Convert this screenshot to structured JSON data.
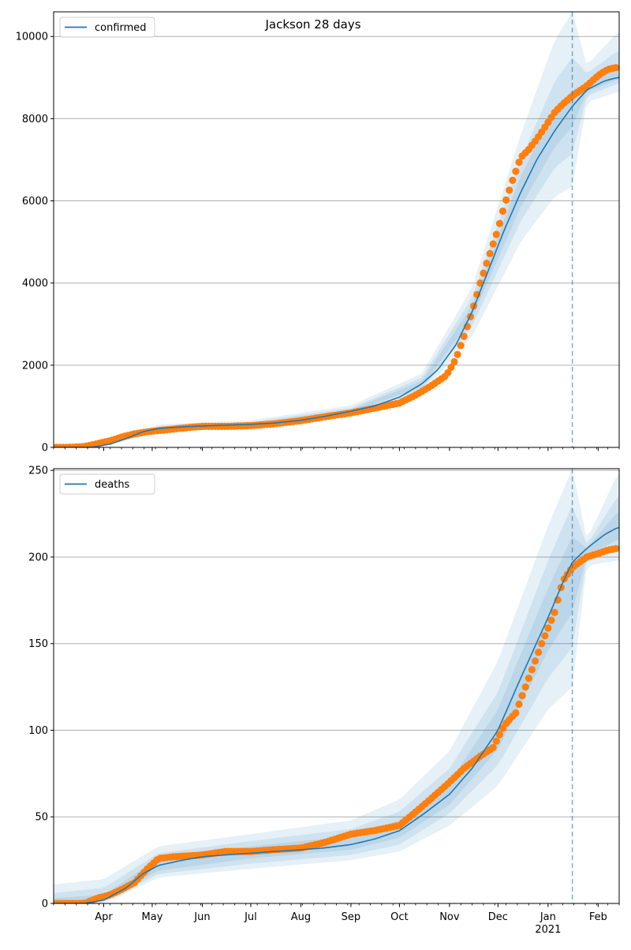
{
  "figure_title": "Jackson 28 days",
  "chart_data": [
    {
      "type": "line",
      "legend_label": "confirmed",
      "legend_position": "upper-left",
      "ylim": [
        0,
        10600
      ],
      "yticks": [
        0,
        2000,
        4000,
        6000,
        8000,
        10000
      ],
      "grid": "horizontal",
      "forecast_start": "2021-01-16",
      "model_median": {
        "dates": [
          "2020-03-01",
          "2020-03-15",
          "2020-03-25",
          "2020-04-05",
          "2020-04-15",
          "2020-04-25",
          "2020-05-05",
          "2020-05-20",
          "2020-06-01",
          "2020-06-15",
          "2020-07-01",
          "2020-07-15",
          "2020-08-01",
          "2020-08-15",
          "2020-09-01",
          "2020-09-15",
          "2020-10-01",
          "2020-10-15",
          "2020-10-25",
          "2020-11-05",
          "2020-11-15",
          "2020-11-25",
          "2020-12-05",
          "2020-12-15",
          "2020-12-25",
          "2021-01-05",
          "2021-01-16",
          "2021-01-25",
          "2021-02-05",
          "2021-02-13"
        ],
        "values": [
          0,
          0,
          5,
          80,
          220,
          380,
          460,
          500,
          520,
          540,
          560,
          590,
          660,
          750,
          880,
          1000,
          1220,
          1550,
          1900,
          2500,
          3300,
          4300,
          5300,
          6200,
          7000,
          7700,
          8300,
          8700,
          8920,
          9000
        ]
      },
      "bands": [
        {
          "level": "outer",
          "dates": [
            "2020-03-01",
            "2020-04-05",
            "2020-05-05",
            "2020-07-01",
            "2020-09-01",
            "2020-10-15",
            "2020-11-15",
            "2020-12-15",
            "2021-01-05",
            "2021-01-16",
            "2021-01-25",
            "2021-02-13"
          ],
          "low": [
            0,
            60,
            380,
            470,
            760,
            1300,
            2700,
            5000,
            6100,
            6350,
            8400,
            8650
          ],
          "high": [
            0,
            120,
            560,
            660,
            1020,
            1800,
            3900,
            7600,
            9900,
            10600,
            9300,
            10100
          ]
        },
        {
          "level": "middle",
          "dates": [
            "2020-03-01",
            "2020-04-05",
            "2020-05-05",
            "2020-07-01",
            "2020-09-01",
            "2020-10-15",
            "2020-11-15",
            "2020-12-15",
            "2021-01-05",
            "2021-01-16",
            "2021-01-25",
            "2021-02-13"
          ],
          "low": [
            0,
            70,
            410,
            510,
            810,
            1400,
            2950,
            5500,
            6800,
            7150,
            8550,
            8850
          ],
          "high": [
            0,
            100,
            520,
            620,
            960,
            1700,
            3650,
            7000,
            8900,
            9500,
            9100,
            9650
          ]
        },
        {
          "level": "inner",
          "dates": [
            "2020-03-01",
            "2020-04-05",
            "2020-05-05",
            "2020-07-01",
            "2020-09-01",
            "2020-10-15",
            "2020-11-15",
            "2020-12-15",
            "2021-01-05",
            "2021-01-16",
            "2021-01-25",
            "2021-02-13"
          ],
          "low": [
            0,
            75,
            440,
            540,
            850,
            1480,
            3150,
            5850,
            7300,
            7800,
            8650,
            8950
          ],
          "high": [
            0,
            90,
            490,
            590,
            920,
            1620,
            3450,
            6600,
            8200,
            8700,
            8850,
            9250
          ]
        }
      ],
      "observed": {
        "dates": [
          "2020-03-01",
          "2020-03-10",
          "2020-03-20",
          "2020-03-28",
          "2020-04-05",
          "2020-04-12",
          "2020-04-20",
          "2020-04-28",
          "2020-05-05",
          "2020-05-15",
          "2020-05-25",
          "2020-06-01",
          "2020-06-15",
          "2020-07-01",
          "2020-07-15",
          "2020-08-01",
          "2020-08-15",
          "2020-09-01",
          "2020-09-15",
          "2020-10-01",
          "2020-10-10",
          "2020-10-20",
          "2020-10-30",
          "2020-11-05",
          "2020-11-10",
          "2020-11-15",
          "2020-11-20",
          "2020-11-25",
          "2020-12-01",
          "2020-12-05",
          "2020-12-10",
          "2020-12-15",
          "2020-12-20",
          "2020-12-25",
          "2020-12-31",
          "2021-01-05",
          "2021-01-10",
          "2021-01-16",
          "2021-01-25",
          "2021-02-01",
          "2021-02-07",
          "2021-02-13"
        ],
        "values": [
          0,
          0,
          20,
          90,
          160,
          250,
          330,
          380,
          410,
          450,
          490,
          510,
          510,
          530,
          570,
          650,
          740,
          840,
          950,
          1080,
          1250,
          1480,
          1750,
          2150,
          2700,
          3300,
          4000,
          4600,
          5300,
          5900,
          6500,
          7050,
          7250,
          7500,
          7850,
          8150,
          8350,
          8550,
          8800,
          9050,
          9200,
          9250
        ]
      }
    },
    {
      "type": "line",
      "legend_label": "deaths",
      "legend_position": "upper-left",
      "ylim": [
        0,
        251
      ],
      "yticks": [
        0,
        50,
        100,
        150,
        200,
        250
      ],
      "grid": "horizontal",
      "forecast_start": "2021-01-16",
      "model_median": {
        "dates": [
          "2020-03-01",
          "2020-03-20",
          "2020-04-01",
          "2020-04-15",
          "2020-04-25",
          "2020-05-05",
          "2020-05-20",
          "2020-06-01",
          "2020-06-15",
          "2020-07-01",
          "2020-07-15",
          "2020-08-01",
          "2020-08-15",
          "2020-09-01",
          "2020-09-15",
          "2020-10-01",
          "2020-10-15",
          "2020-11-01",
          "2020-11-15",
          "2020-12-01",
          "2020-12-15",
          "2021-01-01",
          "2021-01-10",
          "2021-01-16",
          "2021-01-25",
          "2021-02-05",
          "2021-02-13"
        ],
        "values": [
          0,
          0,
          2,
          9,
          17,
          22,
          25,
          27,
          28,
          29,
          30,
          31,
          32,
          34,
          37,
          42,
          51,
          63,
          78,
          100,
          130,
          165,
          185,
          197,
          205,
          213,
          217
        ]
      },
      "bands": [
        {
          "level": "outer",
          "dates": [
            "2020-03-01",
            "2020-04-01",
            "2020-05-05",
            "2020-07-01",
            "2020-09-01",
            "2020-10-01",
            "2020-11-01",
            "2020-12-01",
            "2021-01-01",
            "2021-01-16",
            "2021-01-25",
            "2021-02-13"
          ],
          "low": [
            0,
            0,
            15,
            20,
            25,
            30,
            45,
            68,
            112,
            125,
            195,
            198
          ],
          "high": [
            11,
            14,
            33,
            40,
            48,
            60,
            88,
            140,
            218,
            251,
            210,
            248
          ]
        },
        {
          "level": "middle",
          "dates": [
            "2020-03-01",
            "2020-04-01",
            "2020-05-05",
            "2020-07-01",
            "2020-09-01",
            "2020-10-01",
            "2020-11-01",
            "2020-12-01",
            "2021-01-01",
            "2021-01-16",
            "2021-01-25",
            "2021-02-13"
          ],
          "low": [
            0,
            1,
            17,
            23,
            28,
            34,
            52,
            80,
            130,
            148,
            199,
            205
          ],
          "high": [
            6,
            9,
            29,
            36,
            43,
            53,
            78,
            122,
            198,
            230,
            207,
            235
          ]
        },
        {
          "level": "inner",
          "dates": [
            "2020-03-01",
            "2020-04-01",
            "2020-05-05",
            "2020-07-01",
            "2020-09-01",
            "2020-10-01",
            "2020-11-01",
            "2020-12-01",
            "2021-01-01",
            "2021-01-16",
            "2021-01-25",
            "2021-02-13"
          ],
          "low": [
            0,
            1,
            19,
            26,
            31,
            38,
            57,
            89,
            146,
            168,
            201,
            210
          ],
          "high": [
            3,
            5,
            26,
            33,
            39,
            48,
            70,
            112,
            182,
            212,
            205,
            226
          ]
        }
      ],
      "observed": {
        "dates": [
          "2020-03-01",
          "2020-03-20",
          "2020-03-28",
          "2020-04-05",
          "2020-04-12",
          "2020-04-20",
          "2020-04-28",
          "2020-05-05",
          "2020-05-15",
          "2020-06-01",
          "2020-06-15",
          "2020-07-01",
          "2020-07-15",
          "2020-08-01",
          "2020-08-15",
          "2020-09-01",
          "2020-09-15",
          "2020-10-01",
          "2020-10-10",
          "2020-10-20",
          "2020-11-01",
          "2020-11-10",
          "2020-11-20",
          "2020-11-28",
          "2020-12-05",
          "2020-12-12",
          "2020-12-20",
          "2020-12-28",
          "2021-01-05",
          "2021-01-10",
          "2021-01-16",
          "2021-01-25",
          "2021-02-01",
          "2021-02-07",
          "2021-02-13"
        ],
        "values": [
          0,
          0,
          3,
          5,
          8,
          12,
          20,
          26,
          27,
          28,
          30,
          30,
          31,
          32,
          35,
          40,
          42,
          45,
          52,
          60,
          70,
          78,
          85,
          90,
          103,
          110,
          130,
          150,
          168,
          186,
          194,
          200,
          202,
          204,
          205
        ]
      }
    }
  ],
  "x_axis": {
    "month_ticks": [
      {
        "date": "2020-04-01",
        "label": "Apr",
        "year": ""
      },
      {
        "date": "2020-05-01",
        "label": "May",
        "year": ""
      },
      {
        "date": "2020-06-01",
        "label": "Jun",
        "year": ""
      },
      {
        "date": "2020-07-01",
        "label": "Jul",
        "year": ""
      },
      {
        "date": "2020-08-01",
        "label": "Aug",
        "year": ""
      },
      {
        "date": "2020-09-01",
        "label": "Sep",
        "year": ""
      },
      {
        "date": "2020-10-01",
        "label": "Oct",
        "year": ""
      },
      {
        "date": "2020-11-01",
        "label": "Nov",
        "year": ""
      },
      {
        "date": "2020-12-01",
        "label": "Dec",
        "year": ""
      },
      {
        "date": "2021-01-01",
        "label": "Jan",
        "year": "2021"
      },
      {
        "date": "2021-02-01",
        "label": "Feb",
        "year": ""
      }
    ],
    "range": [
      "2020-03-01",
      "2021-02-14"
    ]
  },
  "colors": {
    "model": "#1f77b4",
    "observed": "#ff7f0e",
    "band": "#1f77b4",
    "grid": "#b0b0b0",
    "forecast_line": "#1f77b4"
  }
}
